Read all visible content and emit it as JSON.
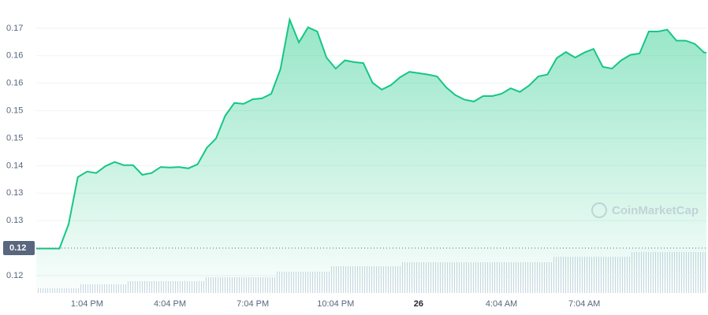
{
  "chart_data": {
    "type": "area",
    "watermark": "CoinMarketCap",
    "categories": [
      null,
      null,
      null,
      null,
      null,
      "1:04 PM",
      null,
      null,
      null,
      null,
      null,
      null,
      null,
      null,
      "4:04 PM",
      null,
      null,
      null,
      null,
      null,
      null,
      null,
      null,
      "7:04 PM",
      null,
      null,
      null,
      null,
      null,
      null,
      null,
      null,
      "10:04 PM",
      null,
      null,
      null,
      null,
      null,
      null,
      null,
      null,
      "26",
      null,
      null,
      null,
      null,
      null,
      null,
      null,
      null,
      "4:04 AM",
      null,
      null,
      null,
      null,
      null,
      null,
      null,
      null,
      "7:04 AM",
      null,
      null,
      null,
      null,
      null,
      null,
      null,
      null,
      null,
      null,
      null,
      null,
      null
    ],
    "series": [
      {
        "color": "#16c784",
        "values": [
          0.1219,
          0.1219,
          0.1219,
          0.1272,
          0.1375,
          0.1387,
          0.1384,
          0.1399,
          0.1408,
          0.1401,
          0.1401,
          0.138,
          0.1384,
          0.1397,
          0.1396,
          0.1397,
          0.1394,
          0.1403,
          0.1439,
          0.1459,
          0.1509,
          0.1537,
          0.1535,
          0.1545,
          0.1547,
          0.1557,
          0.1611,
          0.1719,
          0.1669,
          0.1702,
          0.1693,
          0.1636,
          0.1612,
          0.163,
          0.1626,
          0.1624,
          0.1581,
          0.1566,
          0.1576,
          0.1593,
          0.1605,
          0.1602,
          0.1599,
          0.1595,
          0.1571,
          0.1554,
          0.1544,
          0.154,
          0.1552,
          0.1552,
          0.1557,
          0.1569,
          0.1561,
          0.1575,
          0.1595,
          0.1599,
          0.1635,
          0.1648,
          0.1636,
          0.1647,
          0.1655,
          0.1616,
          0.1612,
          0.163,
          0.1642,
          0.1645,
          0.1693,
          0.1693,
          0.1697,
          0.1673,
          0.1673,
          0.1666,
          0.1647
        ]
      }
    ],
    "ylim": [
      0.1122,
      0.1748
    ],
    "yticks": [
      {
        "value": 0.116,
        "label": "0.12"
      },
      {
        "value": 0.128,
        "label": "0.13"
      },
      {
        "value": 0.134,
        "label": "0.13"
      },
      {
        "value": 0.14,
        "label": "0.14"
      },
      {
        "value": 0.146,
        "label": "0.15"
      },
      {
        "value": 0.152,
        "label": "0.15"
      },
      {
        "value": 0.158,
        "label": "0.16"
      },
      {
        "value": 0.164,
        "label": "0.16"
      },
      {
        "value": 0.17,
        "label": "0.17"
      }
    ],
    "reference": {
      "value": 0.122,
      "label": "0.12"
    },
    "grid": true
  }
}
